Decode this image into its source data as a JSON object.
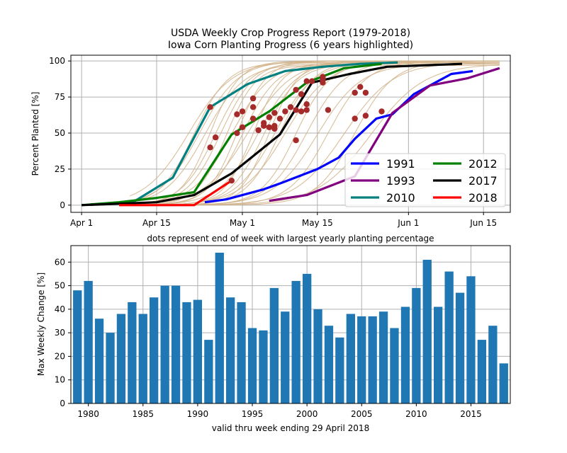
{
  "figure": {
    "title_line1": "USDA Weekly Crop Progress Report (1979-2018)",
    "title_line2": "Iowa Corn Planting Progress (6 years highlighted)"
  },
  "chart_data": [
    {
      "type": "line",
      "xlabel": "dots represent end of week with largest yearly planting percentage",
      "ylabel": "Percent Planted [%]",
      "xlim": [
        "2018-03-30",
        "2018-06-20"
      ],
      "ylim": [
        -5,
        104
      ],
      "x_ticks": [
        {
          "date": "2018-04-01",
          "label": "Apr 1"
        },
        {
          "date": "2018-04-15",
          "label": "Apr 15"
        },
        {
          "date": "2018-05-01",
          "label": "May 1"
        },
        {
          "date": "2018-05-15",
          "label": "May 15"
        },
        {
          "date": "2018-06-01",
          "label": "Jun 1"
        },
        {
          "date": "2018-06-15",
          "label": "Jun 15"
        }
      ],
      "y_ticks": [
        0,
        25,
        50,
        75,
        100
      ],
      "grid": true,
      "legend_position": "lower-right",
      "legend_columns": 2,
      "background_series_color": "#d2b48c",
      "dot_color": "#a52a2a",
      "highlighted": [
        {
          "name": "1991",
          "color": "#0000ff",
          "points": [
            [
              "2018-04-24",
              2
            ],
            [
              "2018-04-28",
              4
            ],
            [
              "2018-05-05",
              11
            ],
            [
              "2018-05-08",
              15
            ],
            [
              "2018-05-15",
              25
            ],
            [
              "2018-05-19",
              33
            ],
            [
              "2018-05-22",
              46
            ],
            [
              "2018-05-26",
              60
            ],
            [
              "2018-05-29",
              63
            ],
            [
              "2018-06-02",
              77
            ],
            [
              "2018-06-09",
              91
            ],
            [
              "2018-06-13",
              93
            ]
          ]
        },
        {
          "name": "1993",
          "color": "#800080",
          "points": [
            [
              "2018-05-06",
              3
            ],
            [
              "2018-05-13",
              7
            ],
            [
              "2018-05-22",
              20
            ],
            [
              "2018-05-29",
              64
            ],
            [
              "2018-06-05",
              83
            ],
            [
              "2018-06-12",
              88
            ],
            [
              "2018-06-18",
              95
            ]
          ]
        },
        {
          "name": "2010",
          "color": "#008080",
          "points": [
            [
              "2018-04-06",
              1
            ],
            [
              "2018-04-11",
              3
            ],
            [
              "2018-04-18",
              19
            ],
            [
              "2018-04-25",
              68
            ],
            [
              "2018-05-02",
              84
            ],
            [
              "2018-05-09",
              93
            ],
            [
              "2018-05-16",
              96
            ],
            [
              "2018-05-23",
              98
            ],
            [
              "2018-05-30",
              99
            ]
          ]
        },
        {
          "name": "2012",
          "color": "#008000",
          "points": [
            [
              "2018-04-01",
              0
            ],
            [
              "2018-04-08",
              2
            ],
            [
              "2018-04-15",
              5
            ],
            [
              "2018-04-22",
              9
            ],
            [
              "2018-04-29",
              49
            ],
            [
              "2018-05-06",
              65
            ],
            [
              "2018-05-13",
              85
            ],
            [
              "2018-05-20",
              95
            ],
            [
              "2018-05-27",
              98
            ]
          ]
        },
        {
          "name": "2017",
          "color": "#000000",
          "points": [
            [
              "2018-04-01",
              0
            ],
            [
              "2018-04-08",
              1
            ],
            [
              "2018-04-15",
              2
            ],
            [
              "2018-04-22",
              7
            ],
            [
              "2018-04-29",
              22
            ],
            [
              "2018-05-02",
              31
            ],
            [
              "2018-05-08",
              49
            ],
            [
              "2018-05-14",
              85
            ],
            [
              "2018-05-21",
              91
            ],
            [
              "2018-05-28",
              96
            ],
            [
              "2018-06-04",
              97
            ],
            [
              "2018-06-11",
              98
            ]
          ]
        },
        {
          "name": "2018",
          "color": "#ff0000",
          "points": [
            [
              "2018-04-08",
              0
            ],
            [
              "2018-04-15",
              0
            ],
            [
              "2018-04-22",
              0
            ],
            [
              "2018-04-29",
              17
            ]
          ]
        }
      ],
      "dots": [
        [
          "2018-04-25",
          68
        ],
        [
          "2018-04-25",
          40
        ],
        [
          "2018-04-26",
          47
        ],
        [
          "2018-04-29",
          17
        ],
        [
          "2018-04-30",
          63
        ],
        [
          "2018-04-30",
          50
        ],
        [
          "2018-05-01",
          65
        ],
        [
          "2018-05-01",
          54
        ],
        [
          "2018-05-03",
          74
        ],
        [
          "2018-05-03",
          68
        ],
        [
          "2018-05-03",
          60
        ],
        [
          "2018-05-04",
          52
        ],
        [
          "2018-05-05",
          55
        ],
        [
          "2018-05-05",
          57
        ],
        [
          "2018-05-06",
          61
        ],
        [
          "2018-05-06",
          54
        ],
        [
          "2018-05-07",
          55
        ],
        [
          "2018-05-07",
          53
        ],
        [
          "2018-05-07",
          64
        ],
        [
          "2018-05-08",
          60
        ],
        [
          "2018-05-09",
          65
        ],
        [
          "2018-05-10",
          68
        ],
        [
          "2018-05-11",
          80
        ],
        [
          "2018-05-11",
          66
        ],
        [
          "2018-05-11",
          45
        ],
        [
          "2018-05-12",
          77
        ],
        [
          "2018-05-12",
          65
        ],
        [
          "2018-05-13",
          86
        ],
        [
          "2018-05-13",
          70
        ],
        [
          "2018-05-13",
          66
        ],
        [
          "2018-05-14",
          86
        ],
        [
          "2018-05-16",
          89
        ],
        [
          "2018-05-16",
          85
        ],
        [
          "2018-05-16",
          87
        ],
        [
          "2018-05-17",
          66
        ],
        [
          "2018-05-22",
          78
        ],
        [
          "2018-05-22",
          60
        ],
        [
          "2018-05-23",
          82
        ],
        [
          "2018-05-24",
          78
        ],
        [
          "2018-05-24",
          62
        ],
        [
          "2018-05-27",
          65
        ]
      ]
    },
    {
      "type": "bar",
      "xlabel": "valid thru week ending 29 April 2018",
      "ylabel": "Max Weekly Change [%]",
      "xlim": [
        1978.4,
        2018.6
      ],
      "ylim": [
        0,
        67
      ],
      "x_ticks": [
        1980,
        1985,
        1990,
        1995,
        2000,
        2005,
        2010,
        2015
      ],
      "y_ticks": [
        0,
        10,
        20,
        30,
        40,
        50,
        60
      ],
      "grid": true,
      "bar_color": "#1f77b4",
      "years": [
        1979,
        1980,
        1981,
        1982,
        1983,
        1984,
        1985,
        1986,
        1987,
        1988,
        1989,
        1990,
        1991,
        1992,
        1993,
        1994,
        1995,
        1996,
        1997,
        1998,
        1999,
        2000,
        2001,
        2002,
        2003,
        2004,
        2005,
        2006,
        2007,
        2008,
        2009,
        2010,
        2011,
        2012,
        2013,
        2014,
        2015,
        2016,
        2017,
        2018
      ],
      "values": [
        48,
        52,
        36,
        30,
        38,
        43,
        38,
        45,
        50,
        50,
        43,
        44,
        27,
        64,
        45,
        43,
        32,
        31,
        49,
        39,
        52,
        55,
        40,
        33,
        28,
        38,
        37,
        37,
        39,
        32,
        41,
        49,
        61,
        41,
        56,
        47,
        54,
        27,
        33,
        17
      ]
    }
  ]
}
